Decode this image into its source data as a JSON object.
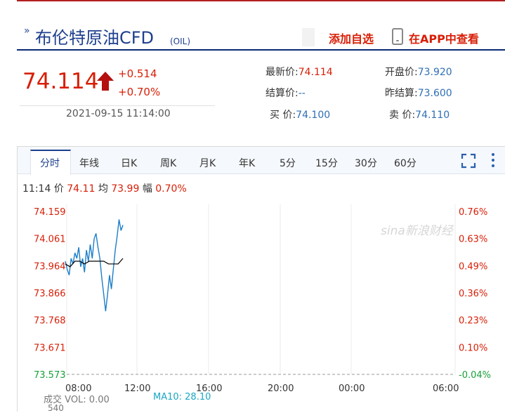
{
  "header": {
    "title": "布伦特原油CFD",
    "code": "(OIL)",
    "add_favorite": "添加自选",
    "app_view": "在APP中查看"
  },
  "quote": {
    "price": "74.114",
    "change": "+0.514",
    "change_pct": "+0.70%",
    "time": "2021-09-15 11:14:00"
  },
  "stats": {
    "latest_label": "最新价:",
    "latest_value": "74.114",
    "open_label": "开盘价:",
    "open_value": "73.920",
    "settle_label": "结算价:",
    "settle_value": "--",
    "prev_settle_label": "昨结算:",
    "prev_settle_value": "73.600",
    "buy_label": "买  价:",
    "buy_value": "74.100",
    "sell_label": "卖  价:",
    "sell_value": "74.110"
  },
  "tabs": [
    "分时",
    "年线",
    "日K",
    "周K",
    "月K",
    "年K",
    "5分",
    "15分",
    "30分",
    "60分"
  ],
  "info_line": {
    "time": "11:14",
    "price_label": "价",
    "price_value": "74.11",
    "avg_label": "均",
    "avg_value": "73.99",
    "amp_label": "幅",
    "amp_value": "0.70%"
  },
  "watermark": "sina新浪财经",
  "chart_data": {
    "type": "line",
    "y_left_labels": [
      "74.159",
      "74.061",
      "73.964",
      "73.866",
      "73.768",
      "73.671",
      "73.573"
    ],
    "y_right_labels": [
      "0.76%",
      "0.63%",
      "0.49%",
      "0.36%",
      "0.23%",
      "0.10%",
      "-0.04%"
    ],
    "x_labels": [
      "08:00",
      "12:00",
      "16:00",
      "20:00",
      "00:00",
      "06:00"
    ],
    "ylim": [
      73.573,
      74.159
    ],
    "series": [
      {
        "color": "#1e7ec8",
        "points": [
          [
            0,
            73.98
          ],
          [
            4,
            73.95
          ],
          [
            8,
            73.93
          ],
          [
            12,
            73.99
          ],
          [
            16,
            73.97
          ],
          [
            20,
            74.01
          ],
          [
            24,
            73.99
          ],
          [
            28,
            74.03
          ],
          [
            32,
            73.96
          ],
          [
            36,
            73.99
          ],
          [
            40,
            73.94
          ],
          [
            44,
            74.02
          ],
          [
            48,
            73.98
          ],
          [
            52,
            74.04
          ],
          [
            56,
            73.99
          ],
          [
            60,
            74.06
          ],
          [
            64,
            74.08
          ],
          [
            68,
            74.03
          ],
          [
            72,
            73.99
          ],
          [
            76,
            73.92
          ],
          [
            80,
            73.86
          ],
          [
            84,
            73.8
          ],
          [
            88,
            73.86
          ],
          [
            92,
            73.93
          ],
          [
            96,
            73.88
          ],
          [
            100,
            73.95
          ],
          [
            104,
            74.02
          ],
          [
            108,
            74.07
          ],
          [
            112,
            74.13
          ],
          [
            116,
            74.09
          ],
          [
            120,
            74.11
          ]
        ]
      },
      {
        "color": "#000000",
        "points": [
          [
            0,
            73.97
          ],
          [
            10,
            73.96
          ],
          [
            20,
            73.98
          ],
          [
            30,
            73.98
          ],
          [
            40,
            73.97
          ],
          [
            50,
            73.98
          ],
          [
            60,
            73.98
          ],
          [
            70,
            73.98
          ],
          [
            80,
            73.98
          ],
          [
            90,
            73.97
          ],
          [
            100,
            73.97
          ],
          [
            110,
            73.97
          ],
          [
            120,
            73.99
          ]
        ]
      }
    ]
  },
  "volume": {
    "label": "成交",
    "vol_text": "VOL: 0.00",
    "ma10_text": "MA10: 28.10",
    "axis_value": "540"
  }
}
